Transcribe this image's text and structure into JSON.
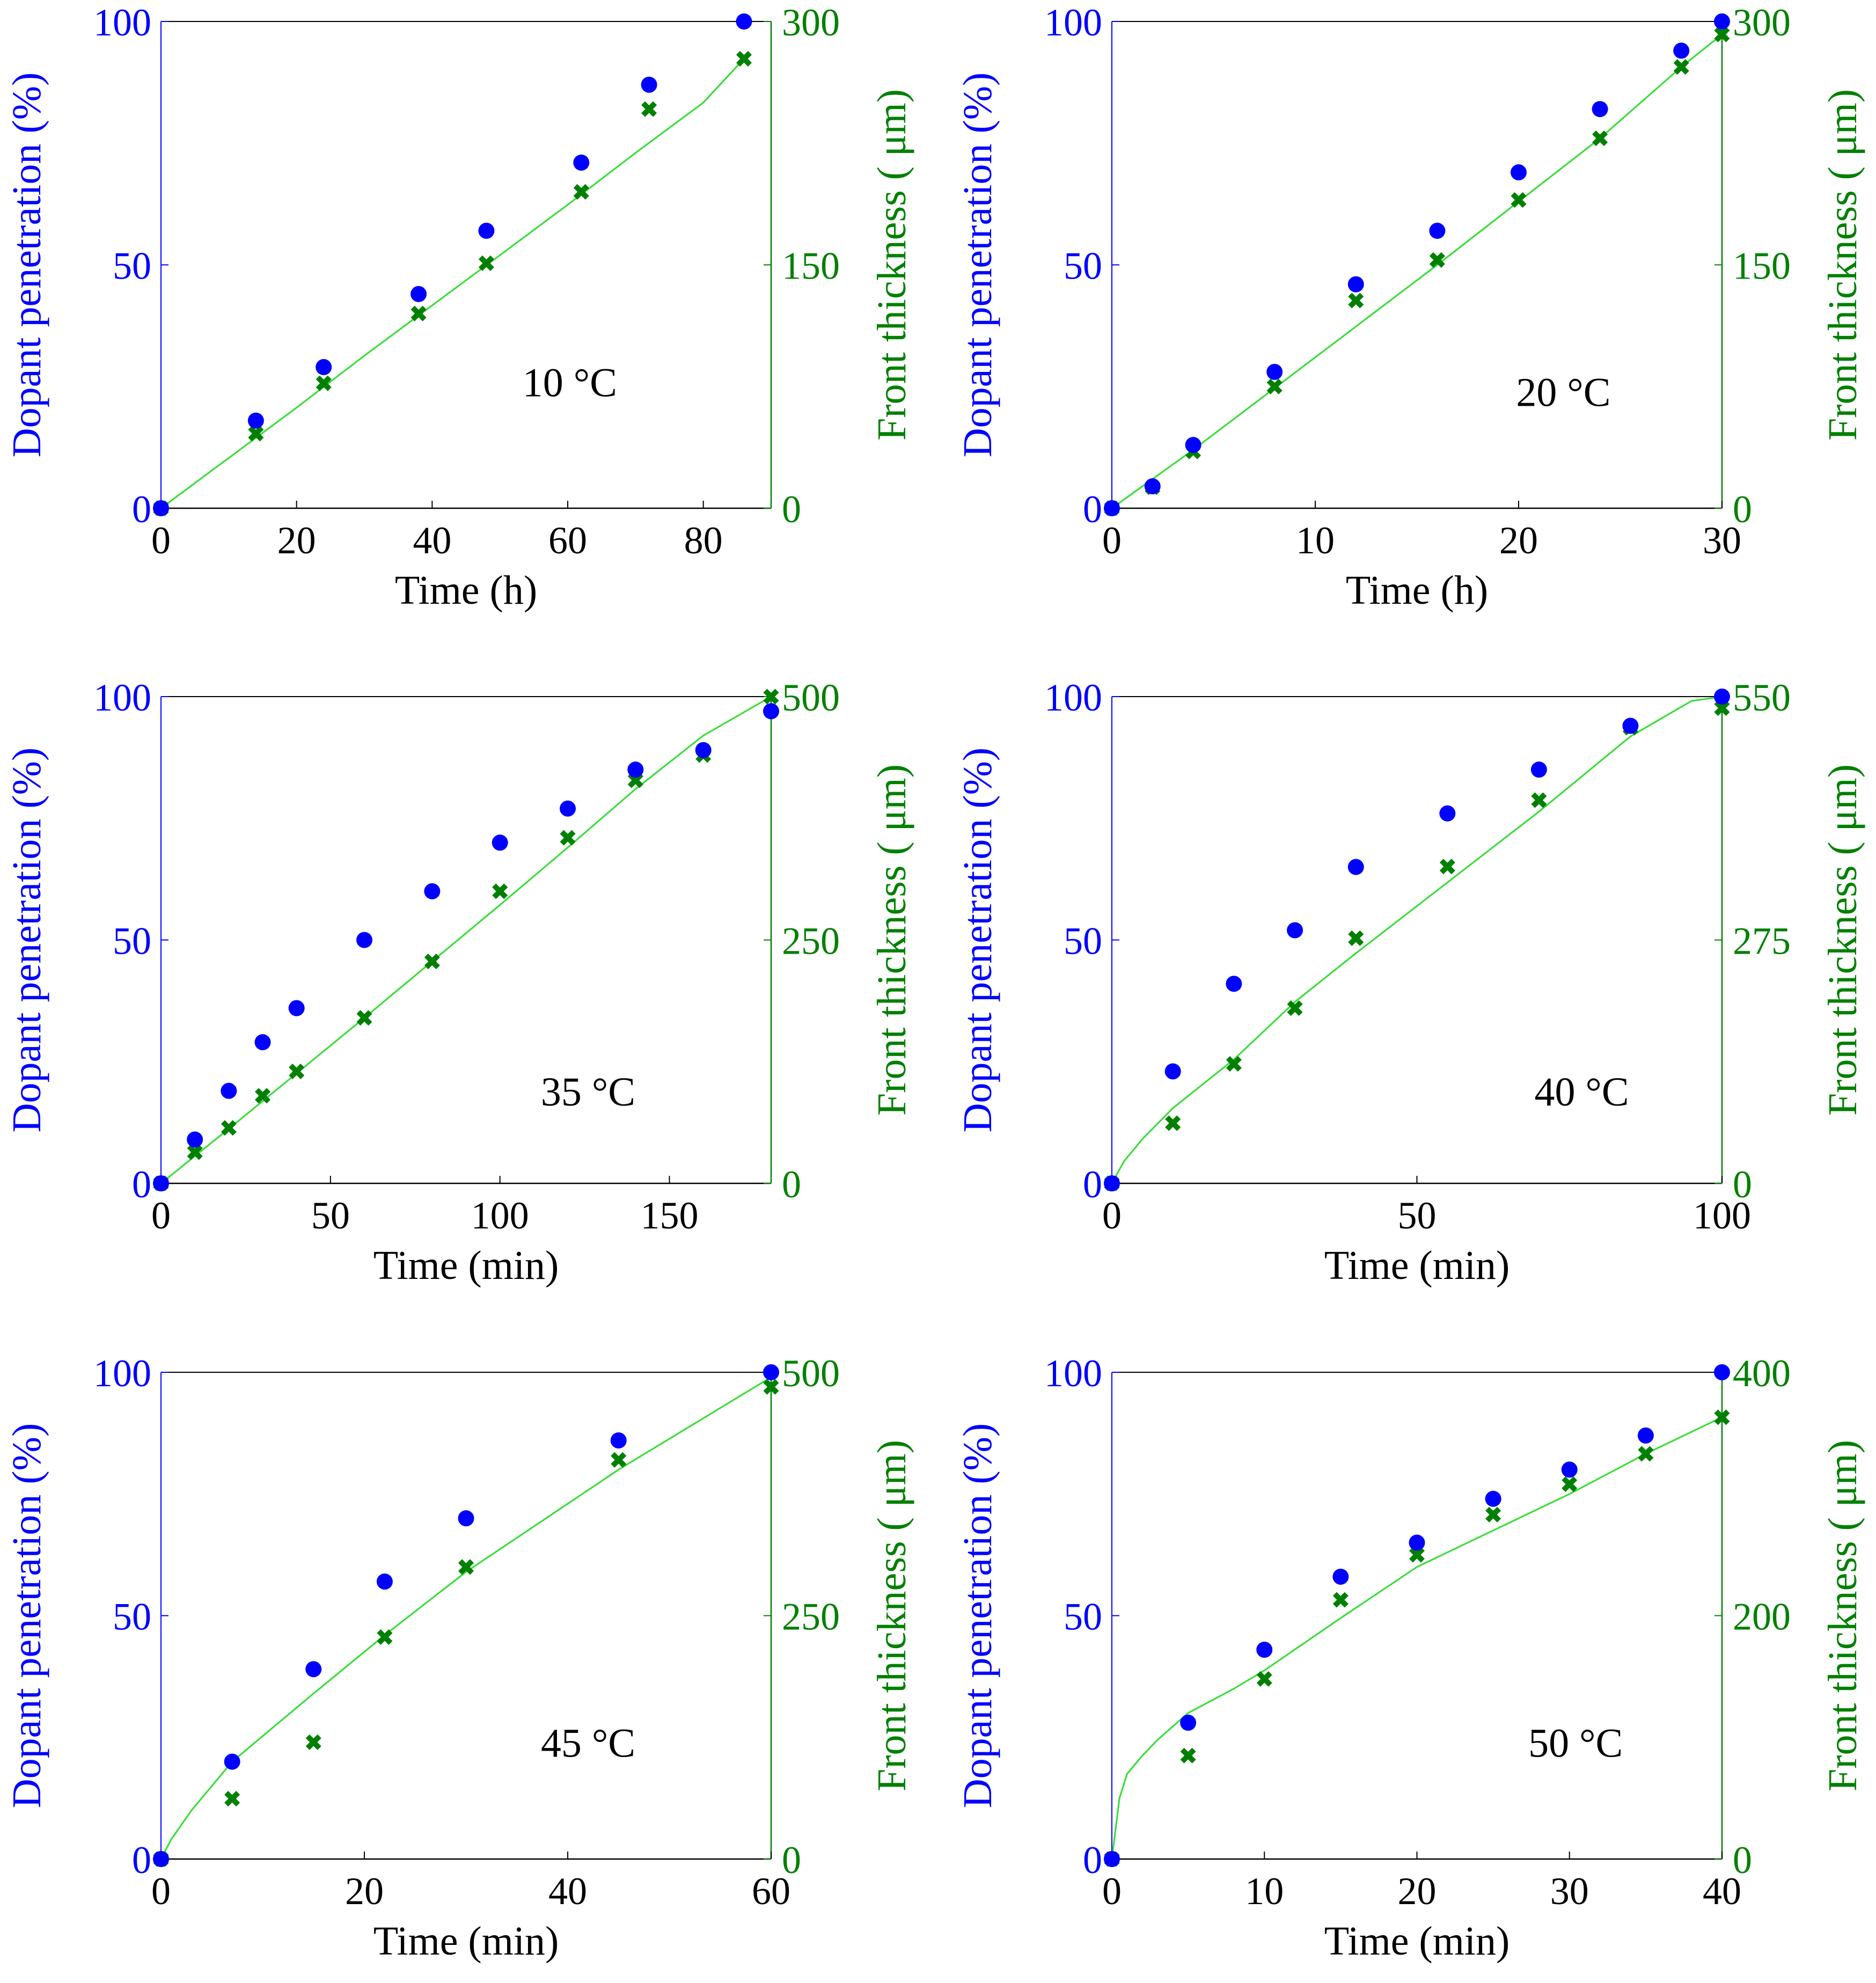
{
  "figure": {
    "colors": {
      "penetration": "#0000ff",
      "front": "#008000",
      "fit_line": "#33dd33",
      "axis": "#000000"
    }
  },
  "chart_data": [
    {
      "type": "scatter",
      "annotation": "10 °C",
      "xlabel": "Time (h)",
      "ylabel_left": "Dopant penetration (%)",
      "ylabel_right": "Front thickness ( μm)",
      "xlim": [
        0,
        90
      ],
      "xticks": [
        0,
        20,
        40,
        60,
        80
      ],
      "ylim_left": [
        0,
        100
      ],
      "yticks_left": [
        0,
        50,
        100
      ],
      "ylim_right": [
        0,
        300
      ],
      "yticks_right": [
        0,
        150,
        300
      ],
      "penetration": {
        "x": [
          0,
          14,
          24,
          38,
          48,
          62,
          72,
          86
        ],
        "y": [
          0,
          18,
          29,
          44,
          57,
          71,
          87,
          100
        ]
      },
      "front_thickness": {
        "x": [
          0,
          14,
          24,
          38,
          48,
          62,
          72,
          86
        ],
        "y": [
          0,
          46,
          77,
          120,
          151,
          195,
          246,
          277
        ]
      },
      "fit": {
        "x": [
          0,
          10,
          20,
          30,
          40,
          50,
          60,
          70,
          80,
          86
        ],
        "y": [
          0,
          31,
          62,
          94,
          125,
          156,
          187,
          219,
          250,
          277
        ]
      }
    },
    {
      "type": "scatter",
      "annotation": "20 °C",
      "xlabel": "Time (h)",
      "ylabel_left": "Dopant penetration (%)",
      "ylabel_right": "Front thickness ( μm)",
      "xlim": [
        0,
        30
      ],
      "xticks": [
        0,
        10,
        20,
        30
      ],
      "ylim_left": [
        0,
        100
      ],
      "yticks_left": [
        0,
        50,
        100
      ],
      "ylim_right": [
        0,
        300
      ],
      "yticks_right": [
        0,
        150,
        300
      ],
      "penetration": {
        "x": [
          0,
          2,
          4,
          8,
          12,
          16,
          20,
          24,
          28,
          30
        ],
        "y": [
          0,
          4.5,
          13,
          28,
          46,
          57,
          69,
          82,
          94,
          100
        ]
      },
      "front_thickness": {
        "x": [
          0,
          2,
          4,
          8,
          12,
          16,
          20,
          24,
          28,
          30
        ],
        "y": [
          0,
          13,
          35,
          75,
          128,
          153,
          190,
          228,
          272,
          292
        ]
      },
      "fit": {
        "x": [
          0,
          2,
          4,
          8,
          12,
          16,
          20,
          24,
          28,
          30
        ],
        "y": [
          0,
          18,
          36,
          74,
          112,
          150,
          189,
          228,
          272,
          292
        ]
      }
    },
    {
      "type": "scatter",
      "annotation": "35 °C",
      "xlabel": "Time (min)",
      "ylabel_left": "Dopant penetration (%)",
      "ylabel_right": "Front thickness ( μm)",
      "xlim": [
        0,
        180
      ],
      "xticks": [
        0,
        50,
        100,
        150
      ],
      "ylim_left": [
        0,
        100
      ],
      "yticks_left": [
        0,
        50,
        100
      ],
      "ylim_right": [
        0,
        500
      ],
      "yticks_right": [
        0,
        250,
        500
      ],
      "penetration": {
        "x": [
          0,
          10,
          20,
          30,
          40,
          60,
          80,
          100,
          120,
          140,
          160,
          180
        ],
        "y": [
          0,
          9,
          19,
          29,
          36,
          50,
          60,
          70,
          77,
          85,
          89,
          97
        ]
      },
      "front_thickness": {
        "x": [
          0,
          10,
          20,
          30,
          40,
          60,
          80,
          100,
          120,
          140,
          160,
          180
        ],
        "y": [
          0,
          32,
          57,
          90,
          115,
          170,
          228,
          300,
          355,
          414,
          440,
          500
        ]
      },
      "fit": {
        "x": [
          0,
          20,
          40,
          60,
          80,
          100,
          120,
          140,
          160,
          180
        ],
        "y": [
          0,
          56,
          113,
          170,
          228,
          286,
          345,
          405,
          460,
          500
        ]
      }
    },
    {
      "type": "scatter",
      "annotation": "40 °C",
      "xlabel": "Time (min)",
      "ylabel_left": "Dopant penetration (%)",
      "ylabel_right": "Front thickness ( μm)",
      "xlim": [
        0,
        100
      ],
      "xticks": [
        0,
        50,
        100
      ],
      "ylim_left": [
        0,
        100
      ],
      "yticks_left": [
        0,
        50,
        100
      ],
      "ylim_right": [
        0,
        550
      ],
      "yticks_right": [
        0,
        275,
        550
      ],
      "penetration": {
        "x": [
          0,
          10,
          20,
          30,
          40,
          55,
          70,
          85,
          100
        ],
        "y": [
          0,
          23,
          41,
          52,
          65,
          76,
          85,
          94,
          100
        ]
      },
      "front_thickness": {
        "x": [
          0,
          10,
          20,
          30,
          40,
          55,
          70,
          85,
          100
        ],
        "y": [
          0,
          68,
          135,
          198,
          277,
          358,
          433,
          515,
          537
        ]
      },
      "fit": {
        "x": [
          0,
          2,
          5,
          10,
          20,
          30,
          40,
          55,
          70,
          85,
          95,
          100
        ],
        "y": [
          0,
          25,
          50,
          85,
          140,
          205,
          260,
          340,
          420,
          505,
          545,
          550
        ]
      }
    },
    {
      "type": "scatter",
      "annotation": "45 °C",
      "xlabel": "Time (min)",
      "ylabel_left": "Dopant penetration (%)",
      "ylabel_right": "Front thickness ( μm)",
      "xlim": [
        0,
        60
      ],
      "xticks": [
        0,
        20,
        40,
        60
      ],
      "ylim_left": [
        0,
        100
      ],
      "yticks_left": [
        0,
        50,
        100
      ],
      "ylim_right": [
        0,
        500
      ],
      "yticks_right": [
        0,
        250,
        500
      ],
      "penetration": {
        "x": [
          0,
          7,
          15,
          22,
          30,
          45,
          60
        ],
        "y": [
          0,
          20,
          39,
          57,
          70,
          86,
          100
        ]
      },
      "front_thickness": {
        "x": [
          0,
          7,
          15,
          22,
          30,
          45,
          60
        ],
        "y": [
          0,
          62,
          120,
          228,
          300,
          410,
          485
        ]
      },
      "fit": {
        "x": [
          0,
          1,
          3,
          7,
          15,
          22,
          30,
          45,
          60
        ],
        "y": [
          0,
          20,
          50,
          100,
          170,
          230,
          295,
          400,
          495
        ]
      }
    },
    {
      "type": "scatter",
      "annotation": "50 °C",
      "xlabel": "Time (min)",
      "ylabel_left": "Dopant penetration (%)",
      "ylabel_right": "Front thickness ( μm)",
      "xlim": [
        0,
        40
      ],
      "xticks": [
        0,
        10,
        20,
        30,
        40
      ],
      "ylim_left": [
        0,
        100
      ],
      "yticks_left": [
        0,
        50,
        100
      ],
      "ylim_right": [
        0,
        400
      ],
      "yticks_right": [
        0,
        200,
        400
      ],
      "penetration": {
        "x": [
          0,
          5,
          10,
          15,
          20,
          25,
          30,
          35,
          40
        ],
        "y": [
          0,
          28,
          43,
          58,
          65,
          74,
          80,
          87,
          100
        ]
      },
      "front_thickness": {
        "x": [
          0,
          5,
          10,
          15,
          20,
          25,
          30,
          35,
          40
        ],
        "y": [
          0,
          85,
          148,
          213,
          250,
          283,
          308,
          333,
          363
        ]
      },
      "fit": {
        "x": [
          0,
          0.5,
          1,
          2,
          3,
          5,
          8,
          10,
          15,
          20,
          25,
          30,
          35,
          40
        ],
        "y": [
          0,
          50,
          70,
          85,
          98,
          120,
          140,
          155,
          198,
          240,
          270,
          300,
          333,
          363
        ]
      }
    }
  ]
}
